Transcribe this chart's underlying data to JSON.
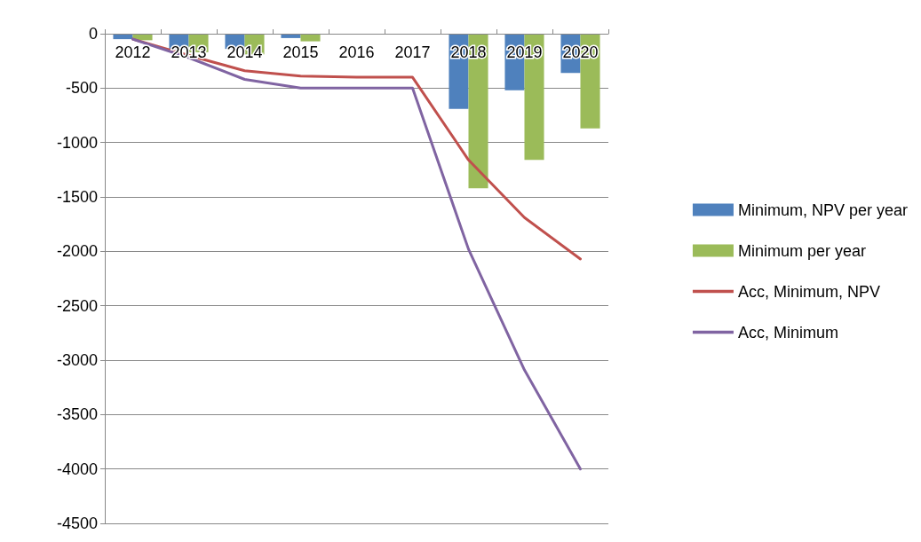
{
  "chart_data": {
    "type": "bar",
    "categories": [
      "2012",
      "2013",
      "2014",
      "2015",
      "2016",
      "2017",
      "2018",
      "2019",
      "2020"
    ],
    "series": [
      {
        "name": "Minimum, NPV per year",
        "color": "#4f81bd",
        "values": [
          -50,
          -140,
          -140,
          -40,
          0,
          0,
          -690,
          -520,
          -360
        ]
      },
      {
        "name": "Minimum per year",
        "color": "#9bbb59",
        "values": [
          -60,
          -170,
          -190,
          -70,
          0,
          0,
          -1420,
          -1160,
          -870
        ]
      },
      {
        "name": "Acc, Minimum, NPV",
        "type": "line",
        "color": "#c0504d",
        "values": [
          -50,
          -200,
          -340,
          -390,
          -400,
          -400,
          -1160,
          -1690,
          -2070
        ]
      },
      {
        "name": "Acc, Minimum",
        "type": "line",
        "color": "#8064a2",
        "values": [
          -50,
          -220,
          -420,
          -500,
          -500,
          -500,
          -1980,
          -3090,
          -4000
        ]
      }
    ],
    "ylim": [
      -4500,
      0
    ],
    "yticks": [
      -4500,
      -4000,
      -3500,
      -3000,
      -2500,
      -2000,
      -1500,
      -1000,
      -500,
      0
    ],
    "grid": "y",
    "legend": "right",
    "marker": "none"
  }
}
